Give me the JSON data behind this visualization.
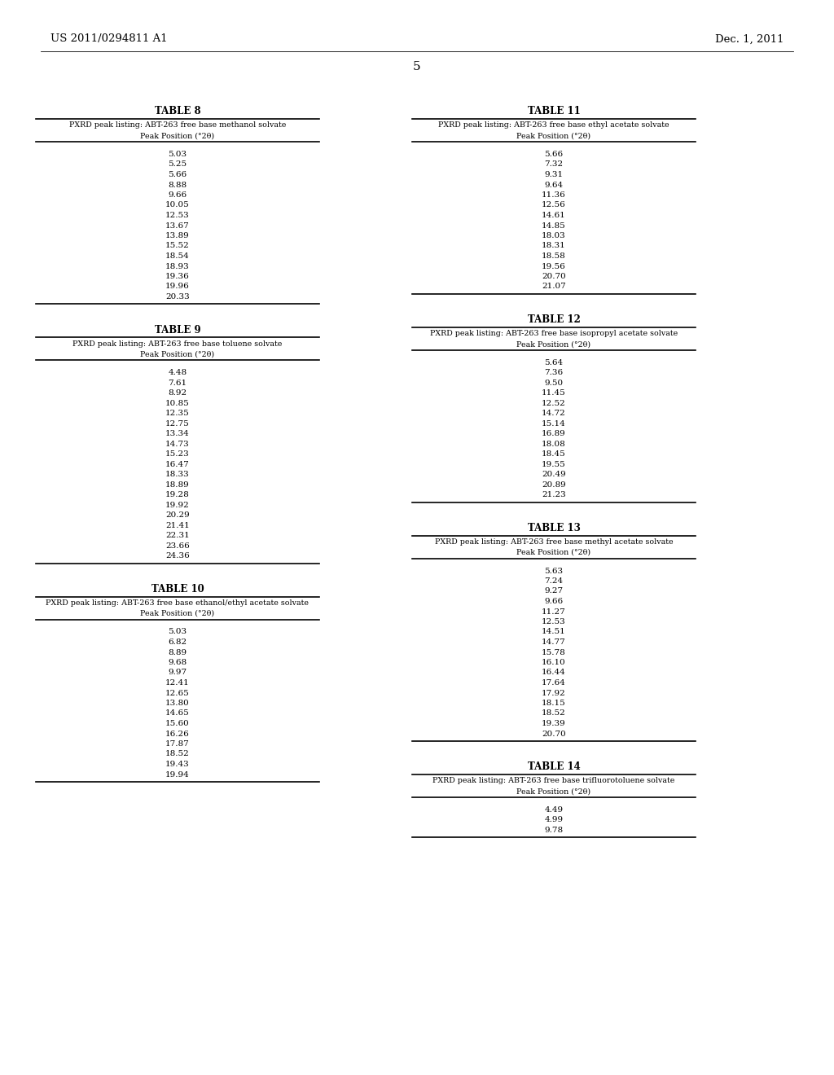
{
  "header_left": "US 2011/0294811 A1",
  "header_right": "Dec. 1, 2011",
  "page_number": "5",
  "background": "#ffffff",
  "tables": [
    {
      "title": "TABLE 8",
      "subtitle": "PXRD peak listing: ABT-263 free base methanol solvate",
      "col_header": "Peak Position (°2θ)",
      "values": [
        "5.03",
        "5.25",
        "5.66",
        "8.88",
        "9.66",
        "10.05",
        "12.53",
        "13.67",
        "13.89",
        "15.52",
        "18.54",
        "18.93",
        "19.36",
        "19.96",
        "20.33"
      ],
      "col": "left"
    },
    {
      "title": "TABLE 9",
      "subtitle": "PXRD peak listing: ABT-263 free base toluene solvate",
      "col_header": "Peak Position (°2θ)",
      "values": [
        "4.48",
        "7.61",
        "8.92",
        "10.85",
        "12.35",
        "12.75",
        "13.34",
        "14.73",
        "15.23",
        "16.47",
        "18.33",
        "18.89",
        "19.28",
        "19.92",
        "20.29",
        "21.41",
        "22.31",
        "23.66",
        "24.36"
      ],
      "col": "left"
    },
    {
      "title": "TABLE 10",
      "subtitle": "PXRD peak listing: ABT-263 free base ethanol/ethyl acetate solvate",
      "col_header": "Peak Position (°2θ)",
      "values": [
        "5.03",
        "6.82",
        "8.89",
        "9.68",
        "9.97",
        "12.41",
        "12.65",
        "13.80",
        "14.65",
        "15.60",
        "16.26",
        "17.87",
        "18.52",
        "19.43",
        "19.94"
      ],
      "col": "left"
    },
    {
      "title": "TABLE 11",
      "subtitle": "PXRD peak listing: ABT-263 free base ethyl acetate solvate",
      "col_header": "Peak Position (°2θ)",
      "values": [
        "5.66",
        "7.32",
        "9.31",
        "9.64",
        "11.36",
        "12.56",
        "14.61",
        "14.85",
        "18.03",
        "18.31",
        "18.58",
        "19.56",
        "20.70",
        "21.07"
      ],
      "col": "right"
    },
    {
      "title": "TABLE 12",
      "subtitle": "PXRD peak listing: ABT-263 free base isopropyl acetate solvate",
      "col_header": "Peak Position (°2θ)",
      "values": [
        "5.64",
        "7.36",
        "9.50",
        "11.45",
        "12.52",
        "14.72",
        "15.14",
        "16.89",
        "18.08",
        "18.45",
        "19.55",
        "20.49",
        "20.89",
        "21.23"
      ],
      "col": "right"
    },
    {
      "title": "TABLE 13",
      "subtitle": "PXRD peak listing: ABT-263 free base methyl acetate solvate",
      "col_header": "Peak Position (°2θ)",
      "values": [
        "5.63",
        "7.24",
        "9.27",
        "9.66",
        "11.27",
        "12.53",
        "14.51",
        "14.77",
        "15.78",
        "16.10",
        "16.44",
        "17.64",
        "17.92",
        "18.15",
        "18.52",
        "19.39",
        "20.70"
      ],
      "col": "right"
    },
    {
      "title": "TABLE 14",
      "subtitle": "PXRD peak listing: ABT-263 free base trifluorotoluene solvate",
      "col_header": "Peak Position (°2θ)",
      "values": [
        "4.49",
        "4.99",
        "9.78"
      ],
      "col": "right"
    }
  ]
}
